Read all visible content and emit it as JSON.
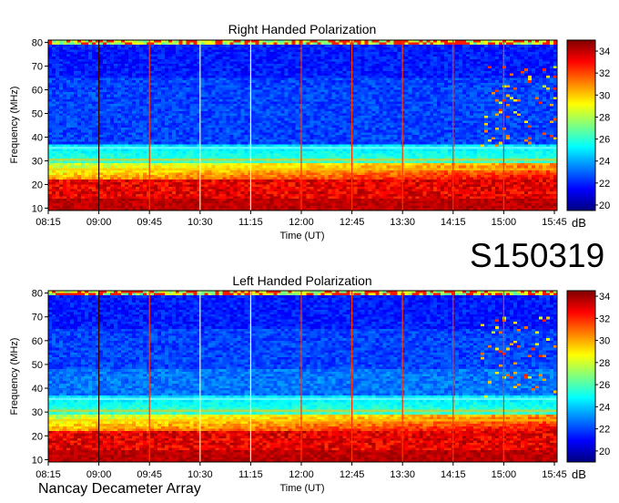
{
  "observation_id": "S150319",
  "instrument": "Nancay Decameter Array",
  "chart_data": [
    {
      "type": "heatmap",
      "title": "Right Handed Polarization",
      "xlabel": "Time (UT)",
      "ylabel": "Frequency (MHz)",
      "x_ticks": [
        "08:15",
        "09:00",
        "09:45",
        "10:30",
        "11:15",
        "12:00",
        "12:45",
        "13:30",
        "14:15",
        "15:00",
        "15:45"
      ],
      "y_ticks": [
        10,
        20,
        30,
        40,
        50,
        60,
        70,
        80
      ],
      "ylim": [
        9,
        81
      ],
      "colorbar": {
        "ticks": [
          20,
          22,
          24,
          26,
          28,
          30,
          32,
          34
        ],
        "range": [
          19.5,
          35
        ],
        "unit": "dB"
      },
      "colormap": [
        "#00007f",
        "#0000ff",
        "#007fff",
        "#00ffff",
        "#7fff7f",
        "#ffff00",
        "#ff7f00",
        "#ff0000",
        "#7f0000"
      ]
    },
    {
      "type": "heatmap",
      "title": "Left Handed Polarization",
      "xlabel": "Time (UT)",
      "ylabel": "Frequency (MHz)",
      "x_ticks": [
        "08:15",
        "09:00",
        "09:45",
        "10:30",
        "11:15",
        "12:00",
        "12:45",
        "13:30",
        "14:15",
        "15:00",
        "15:45"
      ],
      "y_ticks": [
        10,
        20,
        30,
        40,
        50,
        60,
        70,
        80
      ],
      "ylim": [
        9,
        81
      ],
      "colorbar": {
        "ticks": [
          20,
          22,
          24,
          26,
          28,
          30,
          32,
          34
        ],
        "range": [
          19,
          34.5
        ],
        "unit": "dB"
      },
      "colormap": [
        "#00007f",
        "#0000ff",
        "#007fff",
        "#00ffff",
        "#7fff7f",
        "#ffff00",
        "#ff7f00",
        "#ff0000",
        "#7f0000"
      ]
    }
  ]
}
